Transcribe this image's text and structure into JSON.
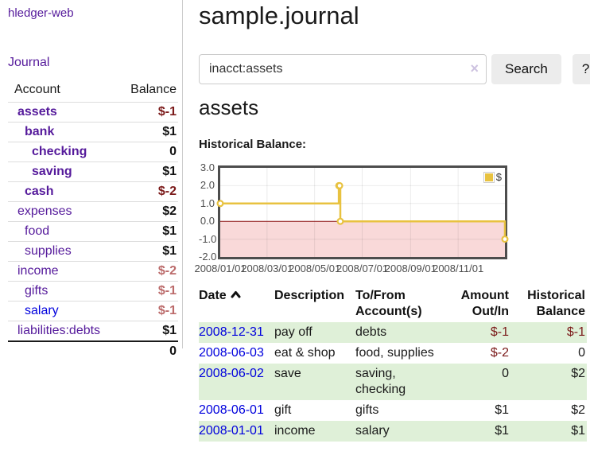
{
  "sidebar": {
    "brand": "hledger-web",
    "nav": {
      "journal": "Journal"
    },
    "accounts_table": {
      "headers": {
        "account": "Account",
        "balance": "Balance"
      },
      "rows": [
        {
          "name": "assets",
          "indent": 1,
          "emphasis": true,
          "balance": "$-1",
          "balance_tone": "negative-strong"
        },
        {
          "name": "bank",
          "indent": 2,
          "emphasis": true,
          "balance": "$1",
          "balance_tone": "positive"
        },
        {
          "name": "checking",
          "indent": 3,
          "emphasis": true,
          "balance": "0",
          "balance_tone": "positive"
        },
        {
          "name": "saving",
          "indent": 3,
          "emphasis": true,
          "balance": "$1",
          "balance_tone": "positive"
        },
        {
          "name": "cash",
          "indent": 2,
          "emphasis": true,
          "balance": "$-2",
          "balance_tone": "negative-strong"
        },
        {
          "name": "expenses",
          "indent": 1,
          "emphasis": false,
          "balance": "$2",
          "balance_tone": "positive"
        },
        {
          "name": "food",
          "indent": 2,
          "emphasis": false,
          "balance": "$1",
          "balance_tone": "positive"
        },
        {
          "name": "supplies",
          "indent": 2,
          "emphasis": false,
          "balance": "$1",
          "balance_tone": "positive"
        },
        {
          "name": "income",
          "indent": 1,
          "emphasis": false,
          "balance": "$-2",
          "balance_tone": "negative-soft"
        },
        {
          "name": "gifts",
          "indent": 2,
          "emphasis": false,
          "balance": "$-1",
          "balance_tone": "negative-soft"
        },
        {
          "name": "salary",
          "indent": 2,
          "emphasis": false,
          "link_tone": "unvisited-blue",
          "balance": "$-1",
          "balance_tone": "negative-soft"
        },
        {
          "name": "liabilities:debts",
          "indent": 1,
          "emphasis": false,
          "balance": "$1",
          "balance_tone": "positive"
        }
      ],
      "total": "0"
    }
  },
  "header": {
    "title": "sample.journal"
  },
  "search": {
    "value": "inacct:assets",
    "clear_icon": "×",
    "search_button": "Search",
    "help_button": "?"
  },
  "account_view": {
    "title": "assets",
    "chart_heading": "Historical Balance:"
  },
  "chart_data": {
    "type": "line",
    "title": "Historical Balance",
    "legend": {
      "label": "$",
      "position": "top-right"
    },
    "series": [
      {
        "name": "$",
        "color": "#e8c240",
        "step": true,
        "points": [
          [
            "2008-01-01",
            1
          ],
          [
            "2008-06-01",
            2
          ],
          [
            "2008-06-02",
            2
          ],
          [
            "2008-06-03",
            0
          ],
          [
            "2008-12-31",
            -1
          ]
        ]
      }
    ],
    "x_range": [
      "2008-01-01",
      "2008-12-31"
    ],
    "ylim": [
      -2,
      3
    ],
    "grid": true,
    "y_ticks": [
      {
        "label": "3.0",
        "value": 3
      },
      {
        "label": "2.0",
        "value": 2
      },
      {
        "label": "1.0",
        "value": 1
      },
      {
        "label": "0.0",
        "value": 0
      },
      {
        "label": "-1.0",
        "value": -1
      },
      {
        "label": "-2.0",
        "value": -2
      }
    ],
    "x_ticks": [
      {
        "label": "2008/01/01",
        "date": "2008-01-01"
      },
      {
        "label": "2008/03/01",
        "date": "2008-03-01"
      },
      {
        "label": "2008/05/01",
        "date": "2008-05-01"
      },
      {
        "label": "2008/07/01",
        "date": "2008-07-01"
      },
      {
        "label": "2008/09/01",
        "date": "2008-09-01"
      },
      {
        "label": "2008/11/01",
        "date": "2008-11-01"
      }
    ],
    "negative_region_fill": "#f9d9d9",
    "zero_line_color": "#8b1010"
  },
  "register": {
    "headers": {
      "date": "Date",
      "description": "Description",
      "tofrom": "To/From Account(s)",
      "amount": "Amount Out/In",
      "balance": "Historical Balance"
    },
    "rows": [
      {
        "date": "2008-12-31",
        "description": "pay off",
        "tofrom": "debts",
        "amount": "$-1",
        "amount_neg": true,
        "balance": "$-1",
        "balance_neg": true
      },
      {
        "date": "2008-06-03",
        "description": "eat & shop",
        "tofrom": "food, supplies",
        "amount": "$-2",
        "amount_neg": true,
        "balance": "0",
        "balance_neg": false
      },
      {
        "date": "2008-06-02",
        "description": "save",
        "tofrom": "saving, checking",
        "amount": "0",
        "amount_neg": false,
        "balance": "$2",
        "balance_neg": false
      },
      {
        "date": "2008-06-01",
        "description": "gift",
        "tofrom": "gifts",
        "amount": "$1",
        "amount_neg": false,
        "balance": "$2",
        "balance_neg": false
      },
      {
        "date": "2008-01-01",
        "description": "income",
        "tofrom": "salary",
        "amount": "$1",
        "amount_neg": false,
        "balance": "$1",
        "balance_neg": false
      }
    ]
  },
  "colors": {
    "link_visited_purple": "#551a9b",
    "link_blue": "#0000dd",
    "negative_strong": "#7b1a1a",
    "negative_soft": "#bb6a6a",
    "stripe_green": "#dff0d8",
    "series_gold": "#e8c240"
  }
}
